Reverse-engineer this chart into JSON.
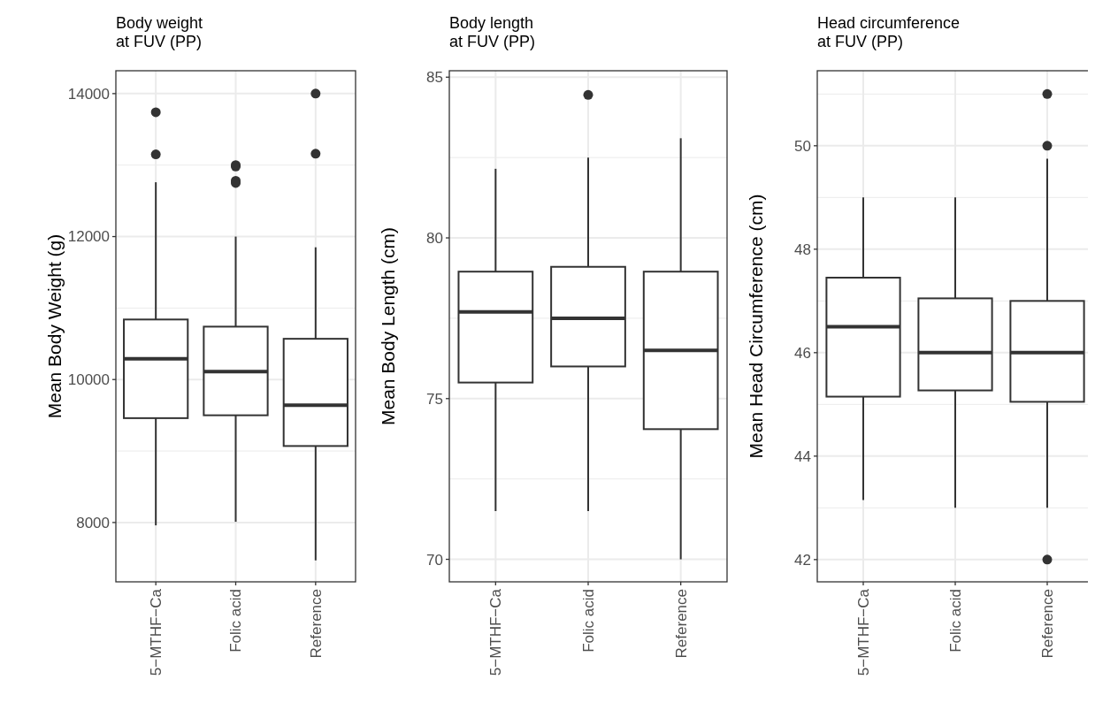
{
  "chart_data": [
    {
      "type": "box",
      "title": "Body weight\nat FUV (PP)",
      "ylabel": "Mean Body Weight (g)",
      "categories": [
        "5−MTHF−Ca",
        "Folic acid",
        "Reference"
      ],
      "color": "#333333",
      "grid": true,
      "ylim": [
        7170,
        14320
      ],
      "yticks": [
        8000,
        10000,
        12000,
        14000
      ],
      "boxes": [
        {
          "low": 7960,
          "q1": 9460,
          "median": 10290,
          "q3": 10840,
          "high": 12760,
          "outliers": [
            13740,
            13150
          ]
        },
        {
          "low": 8010,
          "q1": 9500,
          "median": 10110,
          "q3": 10740,
          "high": 12000,
          "outliers": [
            13000,
            12980,
            12780,
            12750
          ]
        },
        {
          "low": 7470,
          "q1": 9070,
          "median": 9640,
          "q3": 10570,
          "high": 11850,
          "outliers": [
            14000,
            13160
          ]
        }
      ]
    },
    {
      "type": "box",
      "title": "Body length\nat FUV (PP)",
      "ylabel": "Mean Body Length (cm)",
      "categories": [
        "5−MTHF−Ca",
        "Folic acid",
        "Reference"
      ],
      "color": "#333333",
      "grid": true,
      "ylim": [
        69.3,
        85.2
      ],
      "yticks": [
        70,
        75,
        80,
        85
      ],
      "boxes": [
        {
          "low": 71.5,
          "q1": 75.5,
          "median": 77.7,
          "q3": 78.95,
          "high": 82.15
        },
        {
          "low": 71.5,
          "q1": 76.0,
          "median": 77.5,
          "q3": 79.1,
          "high": 82.5,
          "outliers": [
            84.45
          ]
        },
        {
          "low": 70.0,
          "q1": 74.05,
          "median": 76.5,
          "q3": 78.95,
          "high": 83.1
        }
      ]
    },
    {
      "type": "box",
      "title": "Head circumference\nat FUV (PP)",
      "ylabel": "Mean Head Circumference (cm)",
      "categories": [
        "5−MTHF−Ca",
        "Folic acid",
        "Reference"
      ],
      "color": "#333333",
      "grid": true,
      "ylim": [
        41.57,
        51.45
      ],
      "yticks": [
        42,
        44,
        46,
        48,
        50
      ],
      "boxes": [
        {
          "low": 43.15,
          "q1": 45.15,
          "median": 46.5,
          "q3": 47.45,
          "high": 49.0
        },
        {
          "low": 43.0,
          "q1": 45.27,
          "median": 46.0,
          "q3": 47.05,
          "high": 49.0
        },
        {
          "low": 43.0,
          "q1": 45.05,
          "median": 46.0,
          "q3": 47.0,
          "high": 49.75,
          "outliers": [
            51,
            50,
            42
          ]
        }
      ]
    }
  ]
}
